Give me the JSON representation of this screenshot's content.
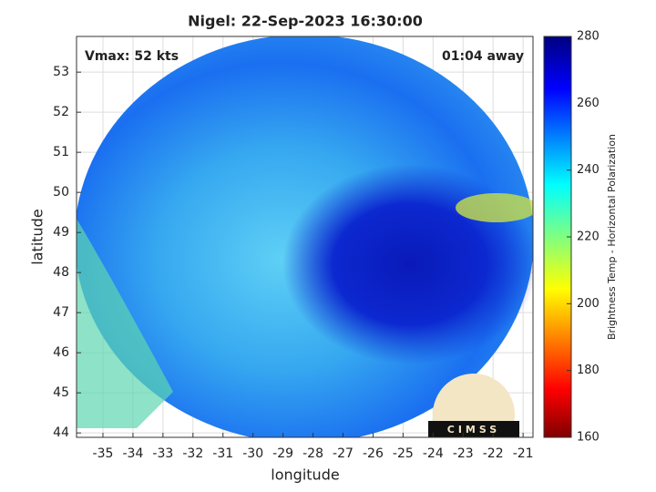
{
  "chart_data": {
    "type": "map",
    "title": "Nigel: 22-Sep-2023 16:30:00",
    "annotations": [
      "Vmax: 52 kts",
      "01:04 away"
    ],
    "xlabel": "longitude",
    "ylabel": "latitude",
    "xlim": [
      -35.88,
      -20.67
    ],
    "ylim": [
      43.89,
      53.89
    ],
    "xticks": [
      -35,
      -34,
      -33,
      -32,
      -31,
      -30,
      -29,
      -28,
      -27,
      -26,
      -25,
      -24,
      -23,
      -22,
      -21
    ],
    "yticks": [
      44,
      45,
      46,
      47,
      48,
      49,
      50,
      51,
      52,
      53
    ],
    "grid": true,
    "colorbar": {
      "label": "Brightness Temp - Horizontal Polarization",
      "lim": [
        160,
        280
      ],
      "ticks": [
        160,
        180,
        200,
        220,
        240,
        260,
        280
      ]
    },
    "logo": "CIMSS"
  }
}
